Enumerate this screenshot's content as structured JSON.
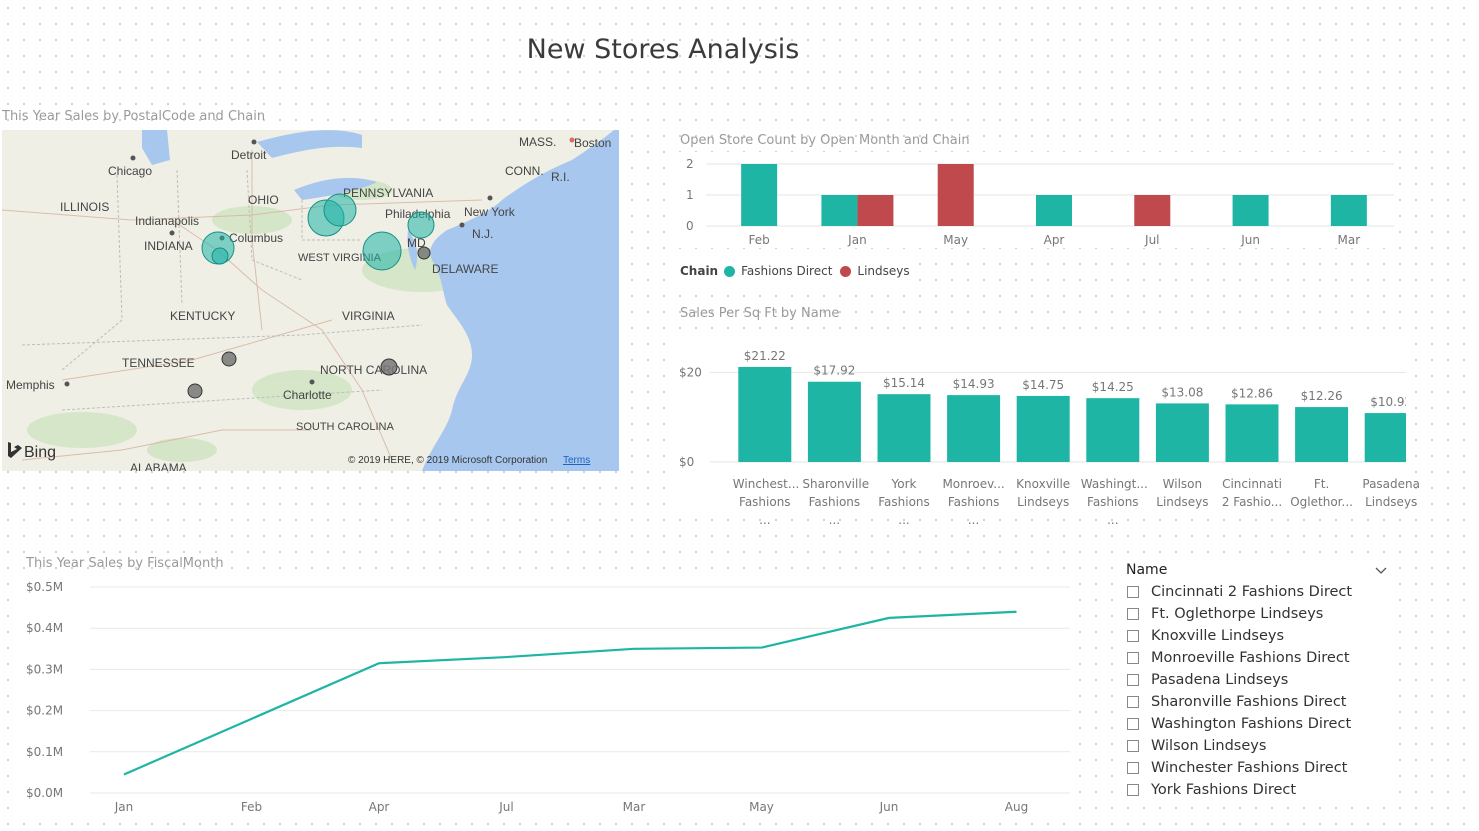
{
  "page": {
    "title": "New Stores Analysis"
  },
  "colors": {
    "fashions_direct": "#1fb5a5",
    "lindseys": "#c0494d",
    "map_water": "#a8c7ee"
  },
  "map": {
    "title": "This Year Sales by PostalCode and Chain",
    "labels": [
      "Detroit",
      "Chicago",
      "OHIO",
      "PENNSYLVANIA",
      "ILLINOIS",
      "Indianapolis",
      "Columbus",
      "Philadelphia",
      "New York",
      "INDIANA",
      "WEST VIRGINIA",
      "MD",
      "N.J.",
      "DELAWARE",
      "KENTUCKY",
      "VIRGINIA",
      "TENNESSEE",
      "NORTH CAROLINA",
      "Memphis",
      "Charlotte",
      "SOUTH CAROLINA",
      "ALABAMA",
      "MASS.",
      "Boston",
      "CONN.",
      "R.I."
    ],
    "brand": "Bing",
    "copyright": "© 2019 HERE, © 2019 Microsoft Corporation",
    "terms": "Terms"
  },
  "open_store_chart": {
    "title": "Open Store Count by Open Month and Chain",
    "legend_label": "Chain",
    "chart_data": {
      "type": "bar",
      "categories": [
        "Feb",
        "Jan",
        "May",
        "Apr",
        "Jul",
        "Jun",
        "Mar"
      ],
      "series": [
        {
          "name": "Fashions Direct",
          "values": [
            2,
            1,
            0,
            1,
            0,
            1,
            1
          ]
        },
        {
          "name": "Lindseys",
          "values": [
            0,
            1,
            2,
            0,
            1,
            0,
            0
          ]
        }
      ],
      "ylim": [
        0,
        2
      ],
      "yticks": [
        "0",
        "1",
        "2"
      ]
    }
  },
  "sales_sqft_chart": {
    "title": "Sales Per Sq Ft by Name",
    "chart_data": {
      "type": "bar",
      "categories": [
        [
          "Winchest...",
          "Fashions ..."
        ],
        [
          "Sharonville",
          "Fashions ..."
        ],
        [
          "York",
          "Fashions ..."
        ],
        [
          "Monroev...",
          "Fashions ..."
        ],
        [
          "Knoxville",
          "Lindseys"
        ],
        [
          "Washingt...",
          "Fashions ..."
        ],
        [
          "Wilson",
          "Lindseys"
        ],
        [
          "Cincinnati",
          "2 Fashio..."
        ],
        [
          "Ft.",
          "Oglethor..."
        ],
        [
          "Pasadena",
          "Lindseys"
        ]
      ],
      "values": [
        21.22,
        17.92,
        15.14,
        14.93,
        14.75,
        14.25,
        13.08,
        12.86,
        12.26,
        10.92
      ],
      "data_labels": [
        "$21.22",
        "$17.92",
        "$15.14",
        "$14.93",
        "$14.75",
        "$14.25",
        "$13.08",
        "$12.86",
        "$12.26",
        "$10.92"
      ],
      "ylim": [
        0,
        25
      ],
      "yticks": [
        "$0",
        "$20"
      ]
    }
  },
  "line_chart": {
    "title": "This Year Sales by FiscalMonth",
    "chart_data": {
      "type": "line",
      "categories": [
        "Jan",
        "Feb",
        "Apr",
        "Jul",
        "Mar",
        "May",
        "Jun",
        "Aug"
      ],
      "values": [
        0.045,
        0.18,
        0.315,
        0.33,
        0.35,
        0.353,
        0.425,
        0.44
      ],
      "ylim": [
        0,
        0.5
      ],
      "yticks": [
        "$0.0M",
        "$0.1M",
        "$0.2M",
        "$0.3M",
        "$0.4M",
        "$0.5M"
      ]
    }
  },
  "slicer": {
    "header": "Name",
    "items": [
      "Cincinnati 2 Fashions Direct",
      "Ft. Oglethorpe Lindseys",
      "Knoxville Lindseys",
      "Monroeville Fashions Direct",
      "Pasadena Lindseys",
      "Sharonville Fashions Direct",
      "Washington Fashions Direct",
      "Wilson Lindseys",
      "Winchester Fashions Direct",
      "York Fashions Direct"
    ]
  }
}
